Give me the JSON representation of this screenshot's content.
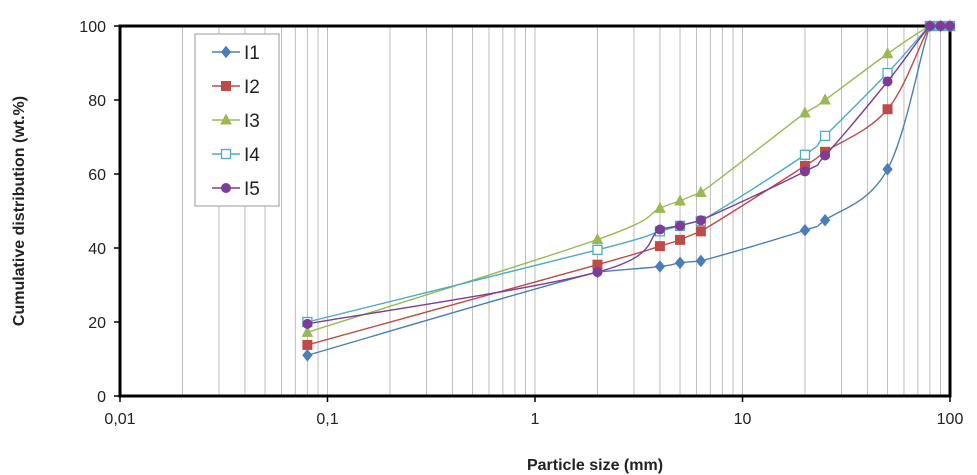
{
  "chart_data": {
    "type": "line",
    "title": "",
    "xlabel": "Particle size (mm)",
    "ylabel": "Cumulative distribution (wt.%)",
    "xscale": "log",
    "xlim": [
      0.01,
      100
    ],
    "ylim": [
      0,
      100
    ],
    "x_ticks": [
      {
        "value": 0.01,
        "label": "0,01"
      },
      {
        "value": 0.1,
        "label": "0,1"
      },
      {
        "value": 1,
        "label": "1"
      },
      {
        "value": 10,
        "label": "10"
      },
      {
        "value": 100,
        "label": "100"
      }
    ],
    "y_ticks": [
      {
        "value": 0,
        "label": "0"
      },
      {
        "value": 20,
        "label": "20"
      },
      {
        "value": 40,
        "label": "40"
      },
      {
        "value": 60,
        "label": "60"
      },
      {
        "value": 80,
        "label": "80"
      },
      {
        "value": 100,
        "label": "100"
      }
    ],
    "grid": "vertical minor log gridlines",
    "legend_position": "top-left",
    "series": [
      {
        "name": "I1",
        "color": "#4a7ebb",
        "marker": "diamond",
        "x": [
          0.08,
          2,
          4,
          5,
          6.3,
          20,
          25,
          50,
          80,
          90,
          100
        ],
        "y": [
          11,
          33.5,
          35,
          36,
          36.5,
          44.8,
          47.5,
          61.3,
          100,
          100,
          100
        ]
      },
      {
        "name": "I2",
        "color": "#be4b48",
        "marker": "square",
        "x": [
          0.08,
          2,
          4,
          5,
          6.3,
          20,
          25,
          50,
          80,
          90,
          100
        ],
        "y": [
          13.8,
          35.5,
          40.5,
          42.2,
          44.5,
          62.2,
          66,
          77.5,
          100,
          100,
          100
        ]
      },
      {
        "name": "I3",
        "color": "#98b954",
        "marker": "triangle",
        "x": [
          0.08,
          2,
          4,
          5,
          6.3,
          20,
          25,
          50,
          80,
          90,
          100
        ],
        "y": [
          17.2,
          42.3,
          50.7,
          52.7,
          55,
          76.5,
          80,
          92.5,
          100,
          100,
          100
        ]
      },
      {
        "name": "I4",
        "color": "#4bacc6",
        "marker": "open-square",
        "x": [
          0.08,
          2,
          4,
          5,
          6.3,
          20,
          25,
          50,
          80,
          90,
          100
        ],
        "y": [
          20,
          39.5,
          44.5,
          46,
          47.3,
          65.2,
          70.3,
          87.3,
          100,
          100,
          100
        ]
      },
      {
        "name": "I5",
        "color": "#7d3c98",
        "marker": "circle",
        "x": [
          0.08,
          2,
          4,
          5,
          6.3,
          20,
          25,
          50,
          80,
          90,
          100
        ],
        "y": [
          19.5,
          33.5,
          45,
          46,
          47.5,
          60.7,
          65,
          85,
          100,
          100,
          100
        ]
      }
    ]
  }
}
